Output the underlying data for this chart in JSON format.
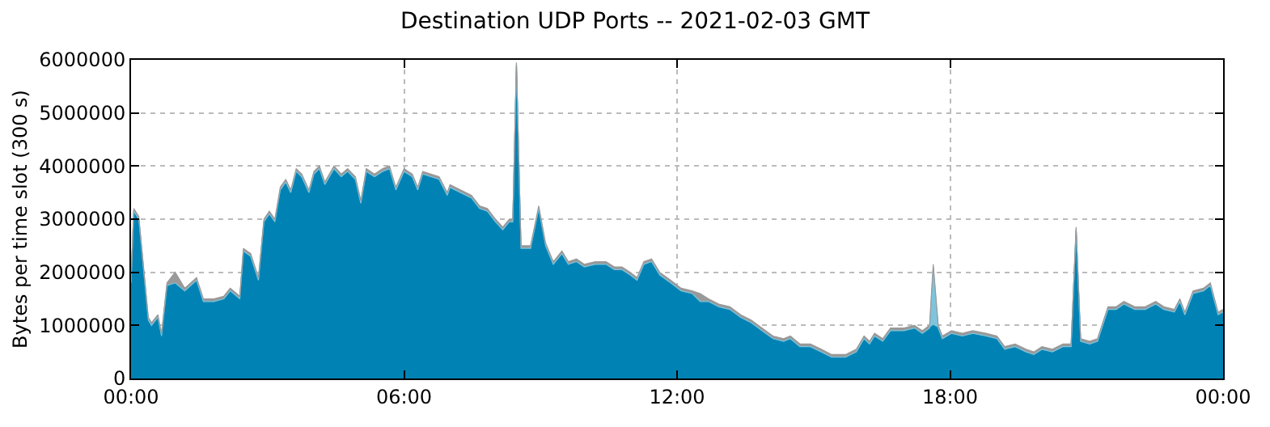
{
  "chart_data": {
    "type": "area",
    "stacked": true,
    "title": "Destination UDP Ports -- 2021-02-03 GMT",
    "ylabel": "Bytes per time slot (300 s)",
    "x": [
      0,
      0.06,
      0.17,
      0.28,
      0.38,
      0.45,
      0.59,
      0.67,
      0.79,
      0.97,
      1.18,
      1.44,
      1.59,
      1.82,
      2.04,
      2.18,
      2.39,
      2.47,
      2.63,
      2.8,
      2.92,
      3.04,
      3.16,
      3.28,
      3.4,
      3.51,
      3.63,
      3.75,
      3.91,
      4.02,
      4.14,
      4.26,
      4.46,
      4.62,
      4.76,
      4.93,
      5.05,
      5.17,
      5.35,
      5.53,
      5.68,
      5.82,
      6.0,
      6.18,
      6.3,
      6.41,
      6.77,
      6.95,
      7.01,
      7.24,
      7.48,
      7.66,
      7.83,
      8.01,
      8.17,
      8.31,
      8.39,
      8.47,
      8.57,
      8.78,
      8.96,
      9.11,
      9.28,
      9.47,
      9.61,
      9.79,
      9.96,
      10.2,
      10.44,
      10.62,
      10.79,
      10.97,
      11.12,
      11.27,
      11.44,
      11.62,
      11.86,
      12.09,
      12.33,
      12.51,
      12.69,
      12.92,
      13.16,
      13.4,
      13.63,
      13.87,
      14.11,
      14.34,
      14.49,
      14.7,
      14.93,
      15.17,
      15.4,
      15.7,
      15.94,
      16.11,
      16.23,
      16.34,
      16.52,
      16.69,
      16.99,
      17.22,
      17.39,
      17.55,
      17.63,
      17.74,
      17.83,
      18.03,
      18.27,
      18.5,
      18.79,
      19.03,
      19.2,
      19.43,
      19.67,
      19.84,
      20.02,
      20.25,
      20.48,
      20.66,
      20.77,
      20.87,
      21.07,
      21.24,
      21.47,
      21.65,
      21.82,
      22.06,
      22.29,
      22.52,
      22.7,
      22.93,
      23.05,
      23.16,
      23.34,
      23.57,
      23.72,
      23.89,
      24
    ],
    "series": [
      {
        "color": "#0083b4",
        "values": [
          1800000,
          3150000,
          3000000,
          2000000,
          1100000,
          1000000,
          1150000,
          800000,
          1750000,
          1800000,
          1650000,
          1850000,
          1450000,
          1450000,
          1500000,
          1650000,
          1500000,
          2400000,
          2300000,
          1850000,
          2950000,
          3100000,
          2950000,
          3550000,
          3700000,
          3500000,
          3900000,
          3800000,
          3500000,
          3850000,
          3950000,
          3650000,
          3950000,
          3800000,
          3900000,
          3750000,
          3300000,
          3900000,
          3800000,
          3900000,
          3950000,
          3550000,
          3900000,
          3800000,
          3550000,
          3850000,
          3750000,
          3450000,
          3600000,
          3500000,
          3400000,
          3200000,
          3150000,
          2950000,
          2800000,
          2950000,
          2950000,
          5900000,
          2450000,
          2450000,
          3200000,
          2500000,
          2150000,
          2350000,
          2150000,
          2200000,
          2100000,
          2150000,
          2150000,
          2050000,
          2050000,
          1950000,
          1850000,
          2150000,
          2200000,
          1950000,
          1800000,
          1650000,
          1600000,
          1450000,
          1450000,
          1350000,
          1300000,
          1150000,
          1050000,
          900000,
          750000,
          700000,
          750000,
          600000,
          600000,
          500000,
          400000,
          400000,
          500000,
          750000,
          650000,
          800000,
          700000,
          900000,
          900000,
          950000,
          850000,
          950000,
          1000000,
          950000,
          750000,
          850000,
          800000,
          850000,
          800000,
          750000,
          550000,
          600000,
          500000,
          450000,
          550000,
          500000,
          600000,
          600000,
          2800000,
          700000,
          650000,
          700000,
          1300000,
          1300000,
          1400000,
          1300000,
          1300000,
          1400000,
          1300000,
          1250000,
          1450000,
          1200000,
          1600000,
          1650000,
          1750000,
          1200000,
          1250000
        ]
      },
      {
        "color": "#7fc4dc",
        "values": [
          0,
          0,
          0,
          0,
          0,
          0,
          0,
          0,
          0,
          0,
          0,
          0,
          0,
          0,
          0,
          0,
          0,
          0,
          0,
          0,
          0,
          0,
          0,
          0,
          0,
          0,
          0,
          0,
          0,
          0,
          0,
          0,
          0,
          0,
          0,
          0,
          0,
          0,
          0,
          0,
          0,
          0,
          0,
          0,
          0,
          0,
          0,
          0,
          0,
          0,
          0,
          0,
          0,
          0,
          0,
          0,
          0,
          0,
          0,
          0,
          0,
          0,
          0,
          0,
          0,
          0,
          0,
          0,
          0,
          0,
          0,
          0,
          0,
          0,
          0,
          0,
          0,
          0,
          0,
          0,
          0,
          0,
          0,
          0,
          0,
          0,
          0,
          0,
          0,
          0,
          0,
          0,
          0,
          0,
          0,
          0,
          0,
          0,
          0,
          0,
          0,
          0,
          0,
          0,
          1100000,
          0,
          0,
          0,
          0,
          0,
          0,
          0,
          0,
          0,
          0,
          0,
          0,
          0,
          0,
          0,
          0,
          0,
          0,
          0,
          0,
          0,
          0,
          0,
          0,
          0,
          0,
          0,
          0,
          0,
          0,
          0,
          0,
          0,
          0
        ]
      },
      {
        "color": "#999999",
        "values": [
          50000,
          50000,
          50000,
          50000,
          50000,
          50000,
          50000,
          50000,
          50000,
          200000,
          50000,
          50000,
          50000,
          50000,
          50000,
          50000,
          50000,
          50000,
          50000,
          50000,
          50000,
          50000,
          50000,
          50000,
          50000,
          50000,
          50000,
          50000,
          50000,
          50000,
          50000,
          50000,
          50000,
          50000,
          50000,
          50000,
          50000,
          50000,
          50000,
          50000,
          50000,
          50000,
          50000,
          50000,
          50000,
          50000,
          50000,
          50000,
          50000,
          50000,
          50000,
          50000,
          50000,
          50000,
          50000,
          50000,
          50000,
          50000,
          50000,
          50000,
          50000,
          50000,
          50000,
          50000,
          50000,
          50000,
          50000,
          50000,
          50000,
          50000,
          50000,
          50000,
          50000,
          50000,
          50000,
          50000,
          50000,
          50000,
          50000,
          150000,
          50000,
          50000,
          50000,
          50000,
          50000,
          50000,
          50000,
          50000,
          50000,
          50000,
          50000,
          50000,
          50000,
          50000,
          50000,
          50000,
          50000,
          50000,
          50000,
          50000,
          50000,
          50000,
          50000,
          50000,
          50000,
          50000,
          50000,
          50000,
          50000,
          50000,
          50000,
          50000,
          50000,
          50000,
          50000,
          50000,
          50000,
          50000,
          50000,
          50000,
          50000,
          50000,
          50000,
          50000,
          50000,
          50000,
          50000,
          50000,
          50000,
          50000,
          50000,
          50000,
          50000,
          50000,
          50000,
          50000,
          50000,
          50000,
          50000
        ]
      }
    ],
    "xlim": [
      0,
      24
    ],
    "xticks": [
      {
        "value": 0,
        "label": "00:00"
      },
      {
        "value": 6,
        "label": "06:00"
      },
      {
        "value": 12,
        "label": "12:00"
      },
      {
        "value": 18,
        "label": "18:00"
      },
      {
        "value": 24,
        "label": "00:00"
      }
    ],
    "ylim": [
      0,
      6000000
    ],
    "yticks": [
      0,
      1000000,
      2000000,
      3000000,
      4000000,
      5000000,
      6000000
    ],
    "grid": true
  }
}
